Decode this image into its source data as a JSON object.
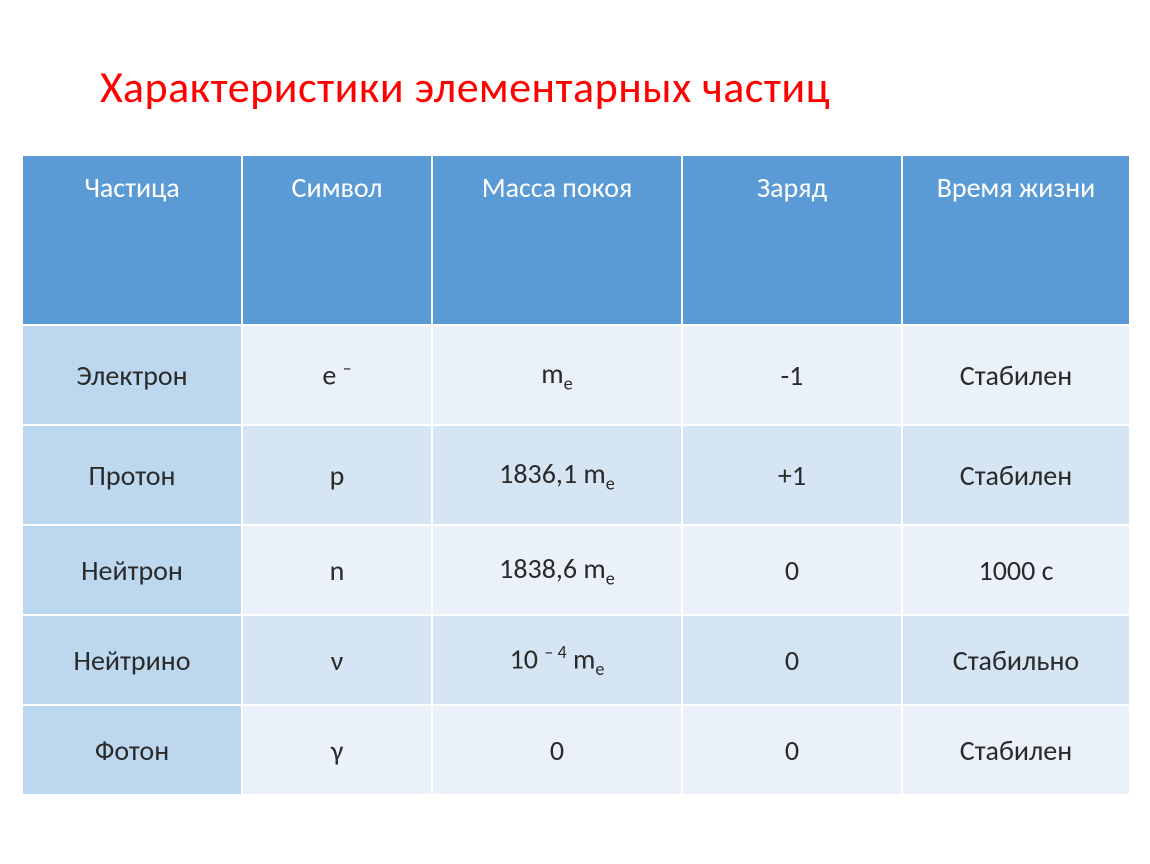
{
  "title": "Характеристики элементарных частиц",
  "table": {
    "header_bg": "#5b9bd5",
    "header_fg": "#ffffff",
    "row_label_bg": "#bdd7ee",
    "row_alt_bg_light": "#eaf1f8",
    "row_alt_bg_dark": "#d6e5f3",
    "columns": [
      {
        "key": "particle",
        "label": "Частица"
      },
      {
        "key": "symbol",
        "label": "Символ"
      },
      {
        "key": "mass",
        "label": "Масса покоя"
      },
      {
        "key": "charge",
        "label": "Заряд"
      },
      {
        "key": "life",
        "label": "Время жизни"
      }
    ],
    "rows": [
      {
        "particle": "Электрон",
        "symbol_html": "e <span class='sup'>–</span>",
        "mass_html": "m<span class='sub'>e</span>",
        "charge": "-1",
        "life": "Стабилен",
        "height": 100
      },
      {
        "particle": "Протон",
        "symbol_html": "p",
        "mass_html": "1836,1 m<span class='sub'>e</span>",
        "charge": "+1",
        "life": "Стабилен",
        "height": 100
      },
      {
        "particle": "Нейтрон",
        "symbol_html": "n",
        "mass_html": "1838,6 m<span class='sub'>e</span>",
        "charge": "0",
        "life": "1000 с",
        "height": 90
      },
      {
        "particle": "Нейтрино",
        "symbol_html": "ν",
        "mass_html": "10 <span class='sup'>– 4</span> m<span class='sub'>e</span>",
        "charge": "0",
        "life": "Стабильно",
        "height": 90
      },
      {
        "particle": "Фотон",
        "symbol_html": "γ",
        "mass_html": "0",
        "charge": "0",
        "life": "Стабилен",
        "height": 90
      }
    ]
  }
}
